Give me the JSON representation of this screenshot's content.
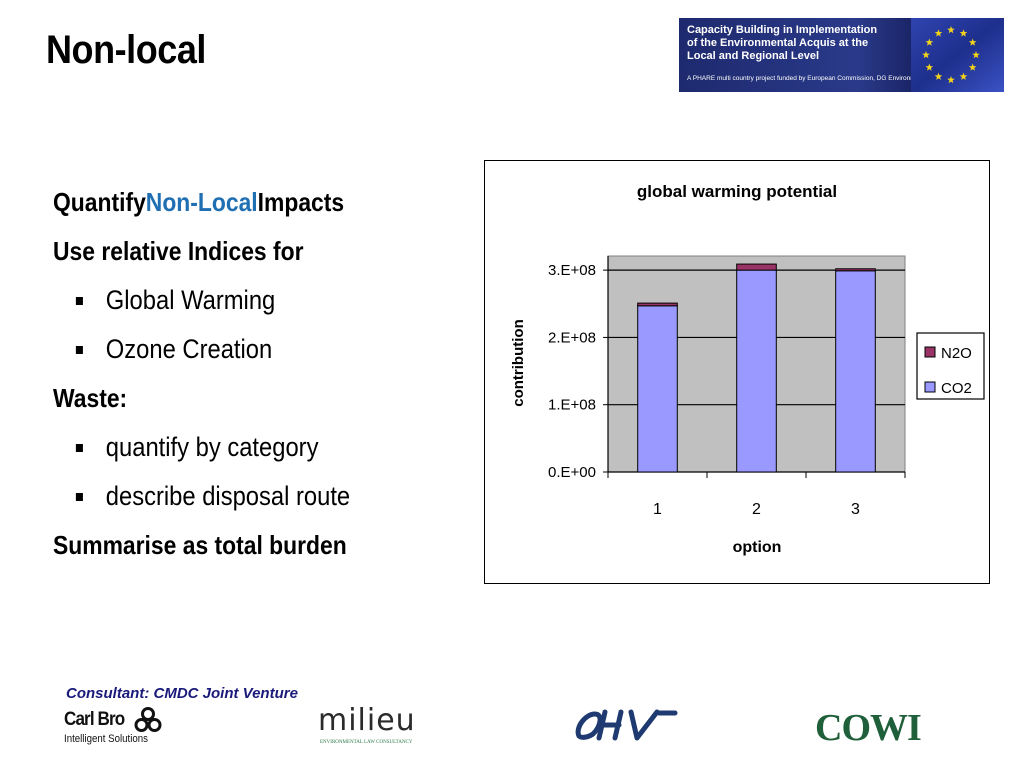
{
  "slide": {
    "title": "Non-local"
  },
  "banner": {
    "line1": "Capacity Building in Implementation",
    "line2": "of the Environmental Acquis at the",
    "line3": "Local and Regional Level",
    "subline": "A PHARE multi country project funded by European Commission, DG Environment",
    "colors": {
      "background": "#1e2a6e",
      "star": "#f2d21b"
    }
  },
  "content": {
    "line1_before": "Quantify ",
    "line1_accent": "Non-Local",
    "line1_after": " Impacts",
    "line2": "Use relative Indices for",
    "bullet_a": "Global Warming",
    "bullet_b": "Ozone Creation",
    "line3": "Waste:",
    "bullet_c": "quantify by category",
    "bullet_d": "describe disposal route",
    "line4": "Summarise as total burden",
    "accent_color": "#1f6fb2"
  },
  "chart_data": {
    "type": "bar",
    "stacked": true,
    "title": "global warming potential",
    "xlabel": "option",
    "ylabel": "contribution",
    "categories": [
      "1",
      "2",
      "3"
    ],
    "series": [
      {
        "name": "CO2",
        "values": [
          247000000,
          300000000,
          299000000
        ],
        "color": "#9999ff"
      },
      {
        "name": "N2O",
        "values": [
          4000000,
          9000000,
          3000000
        ],
        "color": "#993366"
      }
    ],
    "ylim": [
      0,
      300000000
    ],
    "yticks": [
      0,
      100000000,
      200000000,
      300000000
    ],
    "ytick_labels": [
      "0.E+00",
      "1.E+08",
      "2.E+08",
      "3.E+08"
    ],
    "legend": [
      "N2O",
      "CO2"
    ],
    "legend_position": "right",
    "grid": true,
    "plot_background": "#c0c0c0"
  },
  "footer": {
    "consultant": "Consultant: CMDC Joint Venture",
    "carlbro_name": "Carl Bro",
    "carlbro_tag": "Intelligent Solutions",
    "milieu_name": "milieu",
    "milieu_tag": "ENVIRONMENTAL LAW CONSULTANCY",
    "cowi_name": "COWI"
  }
}
